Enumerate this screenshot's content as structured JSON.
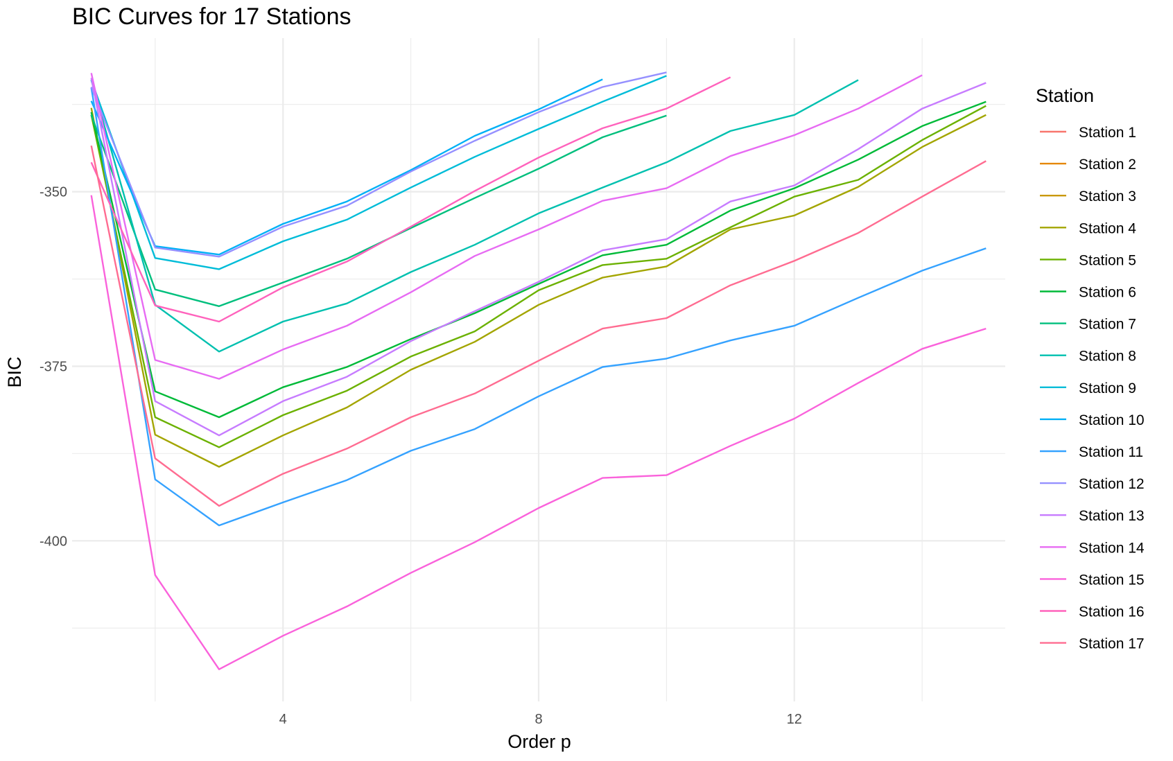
{
  "chart_data": {
    "type": "line",
    "title": "BIC Curves for 17 Stations",
    "xlabel": "Order p",
    "ylabel": "BIC",
    "legend_title": "Station",
    "legend_position": "right",
    "grid": true,
    "xlim": [
      0.7,
      15.3
    ],
    "ylim": [
      -423,
      -328
    ],
    "x_ticks": [
      4,
      8,
      12
    ],
    "y_ticks": [
      -350,
      -375,
      -400
    ],
    "y_minor": [
      -337.5,
      -362.5,
      -387.5,
      -412.5
    ],
    "x_minor": [
      2,
      6,
      10,
      14
    ],
    "series": [
      {
        "name": "Station 1",
        "color": "#F8766D",
        "x": [],
        "y": []
      },
      {
        "name": "Station 2",
        "color": "#E58700",
        "x": [],
        "y": []
      },
      {
        "name": "Station 3",
        "color": "#C99800",
        "x": [],
        "y": []
      },
      {
        "name": "Station 4",
        "color": "#A3A500",
        "x": [
          1,
          2,
          3,
          4,
          5,
          6,
          7,
          8,
          9,
          10,
          11,
          12,
          13,
          14,
          15
        ],
        "y": [
          -338.0,
          -384.8,
          -389.4,
          -384.9,
          -380.9,
          -375.5,
          -371.5,
          -366.2,
          -362.3,
          -360.7,
          -355.4,
          -353.4,
          -349.3,
          -343.6,
          -339.0
        ]
      },
      {
        "name": "Station 5",
        "color": "#6BB100",
        "x": [
          1,
          2,
          3,
          4,
          5,
          6,
          7,
          8,
          9,
          10,
          11,
          12,
          13,
          14,
          15
        ],
        "y": [
          -339.0,
          -382.3,
          -386.6,
          -382.0,
          -378.5,
          -373.6,
          -370.0,
          -364.1,
          -360.5,
          -359.6,
          -355.1,
          -350.7,
          -348.3,
          -342.6,
          -337.7
        ]
      },
      {
        "name": "Station 6",
        "color": "#00BA38",
        "x": [
          1,
          2,
          3,
          4,
          5,
          6,
          7,
          8,
          9,
          10,
          11,
          12,
          13,
          14,
          15
        ],
        "y": [
          -338.6,
          -378.6,
          -382.3,
          -378.0,
          -375.1,
          -371.1,
          -367.4,
          -363.2,
          -359.1,
          -357.6,
          -352.7,
          -349.5,
          -345.4,
          -340.6,
          -337.1
        ]
      },
      {
        "name": "Station 7",
        "color": "#00BF7D",
        "x": [
          1,
          2,
          3,
          4,
          5,
          6,
          7,
          8,
          9,
          10
        ],
        "y": [
          -339.0,
          -364.0,
          -366.4,
          -363.0,
          -359.6,
          -355.2,
          -350.9,
          -346.7,
          -342.2,
          -339.1
        ]
      },
      {
        "name": "Station 8",
        "color": "#00C0AF",
        "x": [
          1,
          2,
          3,
          4,
          5,
          6,
          7,
          8,
          9,
          10,
          11,
          12,
          13
        ],
        "y": [
          -334.0,
          -366.2,
          -372.9,
          -368.6,
          -366.0,
          -361.5,
          -357.6,
          -353.1,
          -349.4,
          -345.8,
          -341.3,
          -339.0,
          -334.0
        ]
      },
      {
        "name": "Station 9",
        "color": "#00BCD8",
        "x": [
          1,
          2,
          3,
          4,
          5,
          6,
          7,
          8,
          9,
          10
        ],
        "y": [
          -334.0,
          -359.5,
          -361.1,
          -357.1,
          -354.0,
          -349.4,
          -345.0,
          -341.0,
          -337.1,
          -333.4
        ]
      },
      {
        "name": "Station 10",
        "color": "#00B0F6",
        "x": [
          1,
          2,
          3,
          4,
          5,
          6,
          7,
          8,
          9
        ],
        "y": [
          -337.0,
          -357.8,
          -359.0,
          -354.6,
          -351.4,
          -346.9,
          -342.0,
          -338.2,
          -333.9
        ]
      },
      {
        "name": "Station 11",
        "color": "#35A2FF",
        "x": [
          1,
          2,
          3,
          4,
          5,
          6,
          7,
          8,
          9,
          10,
          11,
          12,
          13,
          14,
          15
        ],
        "y": [
          -335.1,
          -391.2,
          -397.8,
          -394.5,
          -391.3,
          -387.1,
          -384.0,
          -379.3,
          -375.1,
          -373.9,
          -371.3,
          -369.2,
          -365.2,
          -361.3,
          -358.1
        ]
      },
      {
        "name": "Station 12",
        "color": "#9590FF",
        "x": [
          1,
          2,
          3,
          4,
          5,
          6,
          7,
          8,
          9,
          10
        ],
        "y": [
          -335.0,
          -358.0,
          -359.3,
          -355.0,
          -352.0,
          -347.1,
          -342.7,
          -338.6,
          -335.0,
          -332.9
        ]
      },
      {
        "name": "Station 13",
        "color": "#C77CFF",
        "x": [
          1,
          2,
          3,
          4,
          5,
          6,
          7,
          8,
          9,
          10,
          11,
          12,
          13,
          14,
          15
        ],
        "y": [
          -333.7,
          -380.0,
          -384.9,
          -380.0,
          -376.5,
          -371.4,
          -367.1,
          -362.9,
          -358.4,
          -356.8,
          -351.4,
          -349.1,
          -343.9,
          -338.1,
          -334.4
        ]
      },
      {
        "name": "Station 14",
        "color": "#E76BF3",
        "x": [
          1,
          2,
          3,
          4,
          5,
          6,
          7,
          8,
          9,
          10,
          11,
          12,
          13,
          14
        ],
        "y": [
          -333.0,
          -374.1,
          -376.8,
          -372.6,
          -369.2,
          -364.4,
          -359.2,
          -355.4,
          -351.3,
          -349.5,
          -344.9,
          -341.9,
          -338.1,
          -333.3
        ]
      },
      {
        "name": "Station 15",
        "color": "#FA62DB",
        "x": [
          1,
          2,
          3,
          4,
          5,
          6,
          7,
          8,
          9,
          10,
          11,
          12,
          13,
          14,
          15
        ],
        "y": [
          -350.5,
          -404.9,
          -418.4,
          -413.6,
          -409.4,
          -404.6,
          -400.2,
          -395.3,
          -391.0,
          -390.6,
          -386.4,
          -382.5,
          -377.4,
          -372.5,
          -369.6
        ]
      },
      {
        "name": "Station 16",
        "color": "#FF62BC",
        "x": [
          1,
          2,
          3,
          4,
          5,
          6,
          7,
          8,
          9,
          10,
          11
        ],
        "y": [
          -345.8,
          -366.3,
          -368.6,
          -363.7,
          -360.0,
          -355.0,
          -349.9,
          -345.1,
          -340.9,
          -338.1,
          -333.6
        ]
      },
      {
        "name": "Station 17",
        "color": "#FF6C91",
        "x": [
          1,
          2,
          3,
          4,
          5,
          6,
          7,
          8,
          9,
          10,
          11,
          12,
          13,
          14,
          15
        ],
        "y": [
          -343.4,
          -388.2,
          -395.0,
          -390.4,
          -386.8,
          -382.3,
          -378.9,
          -374.2,
          -369.6,
          -368.1,
          -363.4,
          -359.9,
          -355.9,
          -350.7,
          -345.6
        ]
      }
    ]
  }
}
